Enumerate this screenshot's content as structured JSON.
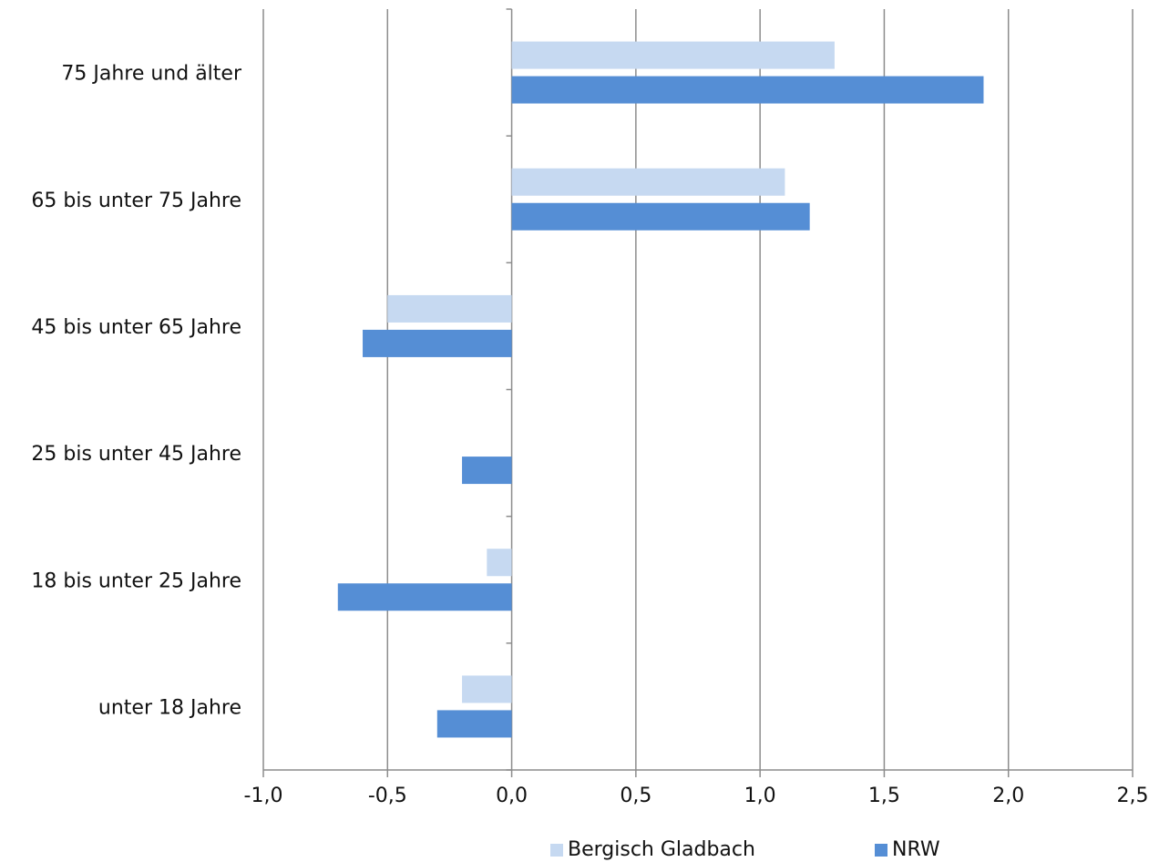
{
  "chart_data": {
    "type": "bar",
    "orientation": "horizontal",
    "title": "",
    "xlabel": "",
    "ylabel": "",
    "categories": [
      "75 Jahre und älter",
      "65 bis unter 75 Jahre",
      "45 bis unter 65 Jahre",
      "25 bis unter 45 Jahre",
      "18 bis unter 25 Jahre",
      "unter 18 Jahre"
    ],
    "series": [
      {
        "name": "Bergisch Gladbach",
        "color": "#c6d9f1",
        "values": [
          1.3,
          1.1,
          -0.5,
          0.0,
          -0.1,
          -0.2
        ]
      },
      {
        "name": "NRW",
        "color": "#558ed5",
        "values": [
          1.9,
          1.2,
          -0.6,
          -0.2,
          -0.7,
          -0.3
        ]
      }
    ],
    "xlim": [
      -1.0,
      2.5
    ],
    "xticks": [
      -1.0,
      -0.5,
      0.0,
      0.5,
      1.0,
      1.5,
      2.0,
      2.5
    ],
    "xtick_labels": [
      "-1,0",
      "-0,5",
      "0,0",
      "0,5",
      "1,0",
      "1,5",
      "2,0",
      "2,5"
    ],
    "grid": "vertical",
    "legend": "bottom"
  }
}
